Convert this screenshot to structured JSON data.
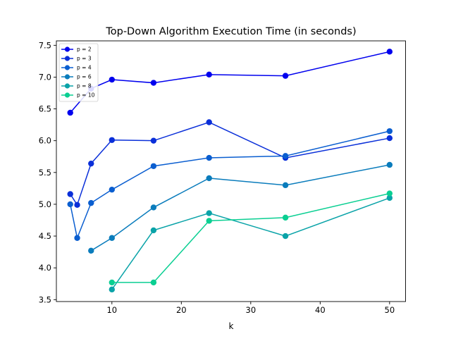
{
  "chart_data": {
    "type": "line",
    "title": "Top-Down Algorithm Execution Time (in seconds)",
    "xlabel": "k",
    "ylabel": "",
    "xlim": [
      2,
      52.3
    ],
    "ylim": [
      3.47,
      7.57
    ],
    "xticks": [
      10,
      20,
      30,
      40,
      50
    ],
    "yticks": [
      3.5,
      4.0,
      4.5,
      5.0,
      5.5,
      6.0,
      6.5,
      7.0,
      7.5
    ],
    "ytick_labels": [
      "3.5",
      "4.0",
      "4.5",
      "5.0",
      "5.5",
      "6.0",
      "6.5",
      "7.0",
      "7.5"
    ],
    "grid": false,
    "legend_position": "top-left",
    "series": [
      {
        "name": "p = 2",
        "color": "#0000ee",
        "x": [
          4,
          7,
          10,
          16,
          24,
          35,
          50
        ],
        "y": [
          6.44,
          6.82,
          6.96,
          6.91,
          7.04,
          7.02,
          7.4
        ]
      },
      {
        "name": "p = 3",
        "color": "#0a2fd9",
        "x": [
          4,
          5,
          7,
          10,
          16,
          24,
          35,
          50
        ],
        "y": [
          5.16,
          4.99,
          5.64,
          6.01,
          6.0,
          6.29,
          5.73,
          6.04
        ]
      },
      {
        "name": "p = 4",
        "color": "#0a5ed0",
        "x": [
          4,
          5,
          7,
          10,
          16,
          24,
          35,
          50
        ],
        "y": [
          5.0,
          4.47,
          5.02,
          5.23,
          5.6,
          5.73,
          5.76,
          6.15
        ]
      },
      {
        "name": "p = 6",
        "color": "#0a7cbc",
        "x": [
          7,
          10,
          16,
          24,
          35,
          50
        ],
        "y": [
          4.27,
          4.47,
          4.95,
          5.41,
          5.3,
          5.62
        ]
      },
      {
        "name": "p = 8",
        "color": "#0aa3a8",
        "x": [
          10,
          16,
          24,
          35,
          50
        ],
        "y": [
          3.66,
          4.59,
          4.86,
          4.5,
          5.1
        ]
      },
      {
        "name": "p = 10",
        "color": "#0acf92",
        "x": [
          10,
          16,
          24,
          35,
          50
        ],
        "y": [
          3.77,
          3.77,
          4.74,
          4.79,
          5.17
        ]
      }
    ]
  }
}
